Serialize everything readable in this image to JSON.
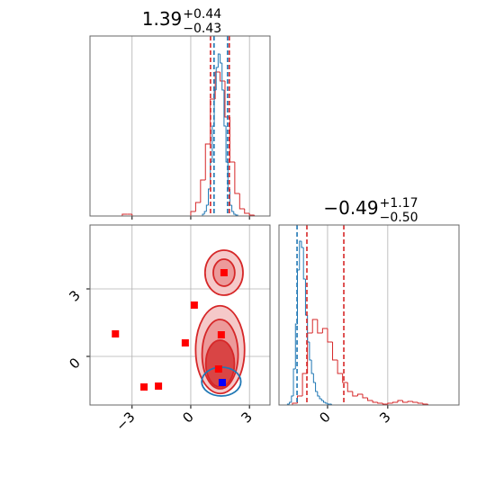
{
  "chart_data": [
    {
      "type": "histogram",
      "title": {
        "value": "1.39",
        "upper": "+0.44",
        "lower": "−0.43"
      },
      "xlim": [
        -5.15,
        4.05
      ],
      "ylim": [
        0,
        200
      ],
      "xticks": [
        -3,
        0,
        3
      ],
      "grid": true,
      "series": [
        {
          "color": "#d62728",
          "bins": [
            -4.5,
            -4.25,
            -4.0,
            -3.75,
            -3.5,
            -3.25,
            -3.0,
            -2.75,
            -2.5,
            -2.25,
            -2.0,
            -1.75,
            -1.5,
            -1.25,
            -1.0,
            -0.75,
            -0.5,
            -0.25,
            0.0,
            0.25,
            0.5,
            0.75,
            1.0,
            1.25,
            1.5,
            1.75,
            2.0,
            2.25,
            2.5,
            2.75,
            3.0,
            3.25,
            3.5
          ],
          "values": [
            0,
            0,
            0,
            0,
            2,
            2,
            0,
            0,
            0,
            0,
            0,
            0,
            0,
            0,
            0,
            0,
            0,
            0,
            5,
            15,
            40,
            80,
            130,
            160,
            150,
            110,
            60,
            25,
            8,
            3,
            1,
            0
          ]
        },
        {
          "color": "#1f77b4",
          "bins": [
            0.6,
            0.7,
            0.8,
            0.9,
            1.0,
            1.1,
            1.2,
            1.3,
            1.4,
            1.5,
            1.6,
            1.7,
            1.8,
            1.9,
            2.0,
            2.1,
            2.2,
            2.3,
            2.4
          ],
          "values": [
            2,
            5,
            12,
            30,
            60,
            100,
            140,
            165,
            180,
            170,
            140,
            100,
            60,
            30,
            12,
            5,
            2,
            1
          ]
        }
      ],
      "quantiles": [
        {
          "color": "#d62728",
          "x": 1.01
        },
        {
          "color": "#1f77b4",
          "x": 1.19
        },
        {
          "color": "#1f77b4",
          "x": 1.88
        },
        {
          "color": "#d62728",
          "x": 1.97
        }
      ]
    },
    {
      "type": "scatter",
      "xlim": [
        -5.15,
        4.05
      ],
      "ylim": [
        -2.16,
        5.84
      ],
      "xticks": [
        {
          "value": -3,
          "label": "−3"
        },
        0,
        3
      ],
      "yticks": [
        0,
        3
      ],
      "grid": true,
      "contours": [
        {
          "fill": "#f5c9c9",
          "stroke": "#d62728",
          "x": 1.5,
          "y": 0.3,
          "rx": 1.25,
          "ry": 1.95
        },
        {
          "fill": "#ec9a9a",
          "stroke": "#d62728",
          "x": 1.5,
          "y": 0.1,
          "rx": 0.92,
          "ry": 1.54
        },
        {
          "fill": "#d94545",
          "stroke": "#d62728",
          "x": 1.5,
          "y": -0.32,
          "rx": 0.73,
          "ry": 1.04
        },
        {
          "fill": "#f5c9c9",
          "stroke": "#d62728",
          "x": 1.7,
          "y": 3.72,
          "rx": 0.97,
          "ry": 1.0
        },
        {
          "fill": "#ec9a9a",
          "stroke": "#d62728",
          "x": 1.7,
          "y": 3.72,
          "rx": 0.55,
          "ry": 0.6
        },
        {
          "fill": "none",
          "stroke": "#1f77b4",
          "x": 1.56,
          "y": -1.12,
          "rx": 1.0,
          "ry": 0.64
        }
      ],
      "series": [
        {
          "color": "#ff0000",
          "x": [
            -3.85,
            0.18,
            -0.28,
            1.56,
            -2.39,
            -1.65,
            1.7,
            1.42
          ],
          "y": [
            1.0,
            2.28,
            0.6,
            0.96,
            -1.36,
            -1.32,
            3.72,
            -0.56
          ]
        },
        {
          "color": "#0000ff",
          "x": [
            1.61
          ],
          "y": [
            -1.16
          ]
        }
      ]
    },
    {
      "type": "histogram",
      "title": {
        "value": "−0.49",
        "upper": "+1.17",
        "lower": "−0.50"
      },
      "xlim": [
        -2.42,
        6.55
      ],
      "ylim": [
        0,
        200
      ],
      "xticks": [
        0,
        3
      ],
      "grid": true,
      "series": [
        {
          "color": "#d62728",
          "bins": [
            -2.0,
            -1.75,
            -1.5,
            -1.25,
            -1.0,
            -0.75,
            -0.5,
            -0.25,
            0.0,
            0.25,
            0.5,
            0.75,
            1.0,
            1.25,
            1.5,
            1.75,
            2.0,
            2.25,
            2.5,
            2.75,
            3.0,
            3.25,
            3.5,
            3.75,
            4.0,
            4.25,
            4.5,
            4.75,
            5.0,
            5.25,
            5.5
          ],
          "values": [
            0,
            2,
            10,
            35,
            80,
            95,
            80,
            85,
            70,
            50,
            35,
            25,
            15,
            10,
            12,
            8,
            5,
            3,
            2,
            1,
            2,
            3,
            5,
            3,
            4,
            3,
            2,
            1,
            0,
            0
          ]
        },
        {
          "color": "#1f77b4",
          "bins": [
            -2.0,
            -1.9,
            -1.8,
            -1.7,
            -1.6,
            -1.5,
            -1.4,
            -1.3,
            -1.2,
            -1.1,
            -1.0,
            -0.9,
            -0.8,
            -0.7,
            -0.6,
            -0.5,
            -0.4,
            -0.3,
            -0.2,
            -0.1,
            0.0,
            0.1,
            0.2,
            0.3,
            0.4
          ],
          "values": [
            1,
            3,
            10,
            40,
            90,
            150,
            182,
            175,
            140,
            100,
            70,
            50,
            35,
            25,
            15,
            10,
            7,
            5,
            3,
            2,
            1,
            1,
            0,
            0
          ]
        }
      ],
      "quantiles": [
        {
          "color": "#1f77b4",
          "x": -1.52
        },
        {
          "color": "#d62728",
          "x": -1.03
        },
        {
          "color": "#d62728",
          "x": 0.81
        }
      ]
    }
  ]
}
